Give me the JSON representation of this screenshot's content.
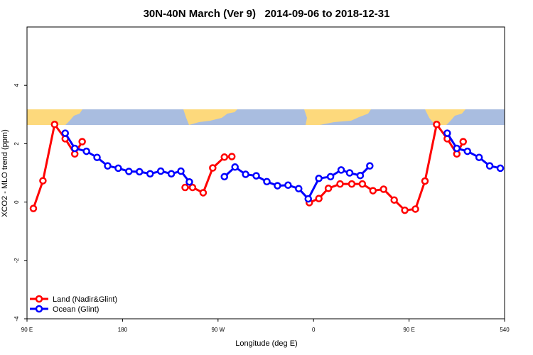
{
  "chart_data": {
    "type": "line",
    "title": "30N-40N March (Ver 9)   2014-09-06 to 2018-12-31",
    "x_label": "Longitude (deg E)",
    "y_label": "XCO2 - MLO trend (ppm)",
    "xlim": [
      90,
      540
    ],
    "ylim": [
      -4,
      6
    ],
    "xticks": [
      {
        "value": 90,
        "label": "90 E"
      },
      180,
      {
        "value": 270,
        "label": "90 W"
      },
      {
        "value": 360,
        "label": "0"
      },
      {
        "value": 450,
        "label": "90 E"
      },
      540
    ],
    "yticks": [
      -4,
      -2,
      0,
      2,
      4
    ],
    "legend": "bottom-left",
    "series": [
      {
        "name": "Land (Nadir&Glint)",
        "color": "#ff0000",
        "x": [
          96,
          105,
          116,
          126,
          135,
          142,
          null,
          239,
          246,
          256,
          265,
          276,
          283,
          null,
          356,
          365,
          374,
          385,
          396,
          406,
          416,
          426,
          436,
          446,
          456,
          465,
          476,
          486,
          495,
          501
        ],
        "values": [
          -0.22,
          0.73,
          2.66,
          2.17,
          1.65,
          2.07,
          null,
          0.5,
          0.5,
          0.32,
          1.17,
          1.54,
          1.56,
          null,
          -0.02,
          0.12,
          0.47,
          0.62,
          0.62,
          0.62,
          0.39,
          0.44,
          0.07,
          -0.28,
          -0.24,
          0.72,
          2.66,
          2.17,
          1.65,
          2.07
        ]
      },
      {
        "name": "Ocean (Glint)",
        "color": "#0000ff",
        "x": [
          126,
          135,
          146,
          156,
          166,
          176,
          186,
          196,
          206,
          216,
          226,
          235,
          243,
          null,
          276,
          286,
          296,
          306,
          316,
          326,
          336,
          346,
          355,
          365,
          376,
          386,
          394,
          404,
          413,
          null,
          486,
          495,
          505,
          516,
          526,
          536
        ],
        "values": [
          2.36,
          1.84,
          1.74,
          1.53,
          1.24,
          1.16,
          1.05,
          1.04,
          0.97,
          1.06,
          0.97,
          1.06,
          0.69,
          null,
          0.87,
          1.2,
          0.95,
          0.9,
          0.7,
          0.56,
          0.58,
          0.46,
          0.11,
          0.81,
          0.87,
          1.1,
          1.0,
          0.91,
          1.24,
          null,
          2.36,
          1.84,
          1.74,
          1.53,
          1.24,
          1.16
        ]
      }
    ]
  }
}
